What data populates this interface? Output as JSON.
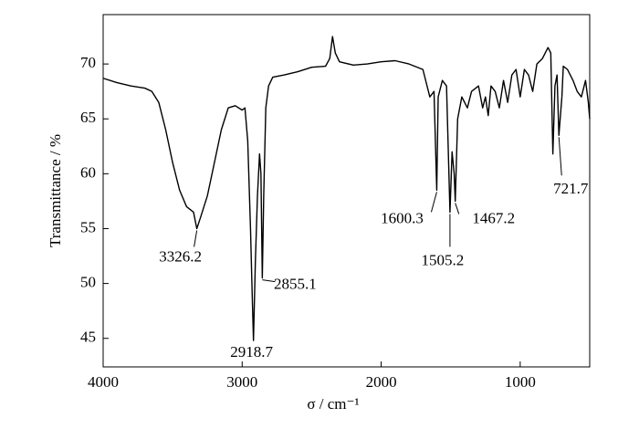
{
  "chart_data": {
    "type": "line",
    "x_label": "σ / cm⁻¹",
    "y_label": "Transmittance / %",
    "xlim": [
      4000,
      500
    ],
    "ylim": [
      42.4,
      74.5
    ],
    "xticks": [
      4000,
      3000,
      2000,
      1000
    ],
    "yticks": [
      45,
      50,
      55,
      60,
      65,
      70
    ],
    "grid": false,
    "series": [
      {
        "color": "#000000",
        "x": [
          4000,
          3900,
          3800,
          3700,
          3650,
          3600,
          3550,
          3500,
          3450,
          3400,
          3350,
          3326.2,
          3300,
          3250,
          3200,
          3150,
          3100,
          3050,
          3000,
          2980,
          2960,
          2940,
          2930,
          2918.7,
          2905,
          2890,
          2875,
          2865,
          2855.1,
          2845,
          2830,
          2810,
          2780,
          2700,
          2600,
          2500,
          2400,
          2370,
          2350,
          2330,
          2300,
          2200,
          2100,
          2000,
          1900,
          1800,
          1700,
          1650,
          1620,
          1600.3,
          1590,
          1560,
          1530,
          1505.2,
          1490,
          1475,
          1467.2,
          1450,
          1420,
          1380,
          1350,
          1300,
          1270,
          1250,
          1230,
          1210,
          1180,
          1150,
          1120,
          1090,
          1060,
          1030,
          1000,
          970,
          940,
          910,
          880,
          840,
          800,
          780,
          765,
          750,
          735,
          721.7,
          700,
          690,
          660,
          620,
          590,
          560,
          530,
          510,
          500
        ],
        "values": [
          68.7,
          68.3,
          68.0,
          67.8,
          67.5,
          66.5,
          64,
          61,
          58.5,
          57,
          56.5,
          55,
          56,
          58,
          61,
          64,
          66,
          66.2,
          65.8,
          66,
          63,
          55,
          50,
          44.8,
          52,
          58,
          61.8,
          60,
          50.5,
          58,
          66,
          68,
          68.8,
          69,
          69.3,
          69.7,
          69.8,
          70.5,
          72.5,
          71,
          70.2,
          69.9,
          70,
          70.2,
          70.3,
          70,
          69.5,
          67,
          67.5,
          58.5,
          67,
          68.5,
          68,
          56.5,
          62,
          60,
          57.5,
          65,
          67,
          66,
          67.5,
          68,
          66,
          67,
          65.3,
          68,
          67.5,
          66,
          68.5,
          66.5,
          69,
          69.5,
          67,
          69.5,
          69,
          67.5,
          70,
          70.5,
          71.5,
          71,
          61.8,
          68,
          69,
          63.5,
          67,
          69.8,
          69.5,
          68.5,
          67.5,
          67,
          68.5,
          66.5,
          65
        ]
      }
    ],
    "annotations": [
      {
        "label": "3326.2",
        "x": 3326.2,
        "y": 55
      },
      {
        "label": "2918.7",
        "x": 2918.7,
        "y": 44.8
      },
      {
        "label": "2855.1",
        "x": 2855.1,
        "y": 50.5
      },
      {
        "label": "1600.3",
        "x": 1600.3,
        "y": 58.5
      },
      {
        "label": "1505.2",
        "x": 1505.2,
        "y": 56.5
      },
      {
        "label": "1467.2",
        "x": 1467.2,
        "y": 57.5
      },
      {
        "label": "721.7",
        "x": 721.7,
        "y": 63.5
      }
    ]
  }
}
